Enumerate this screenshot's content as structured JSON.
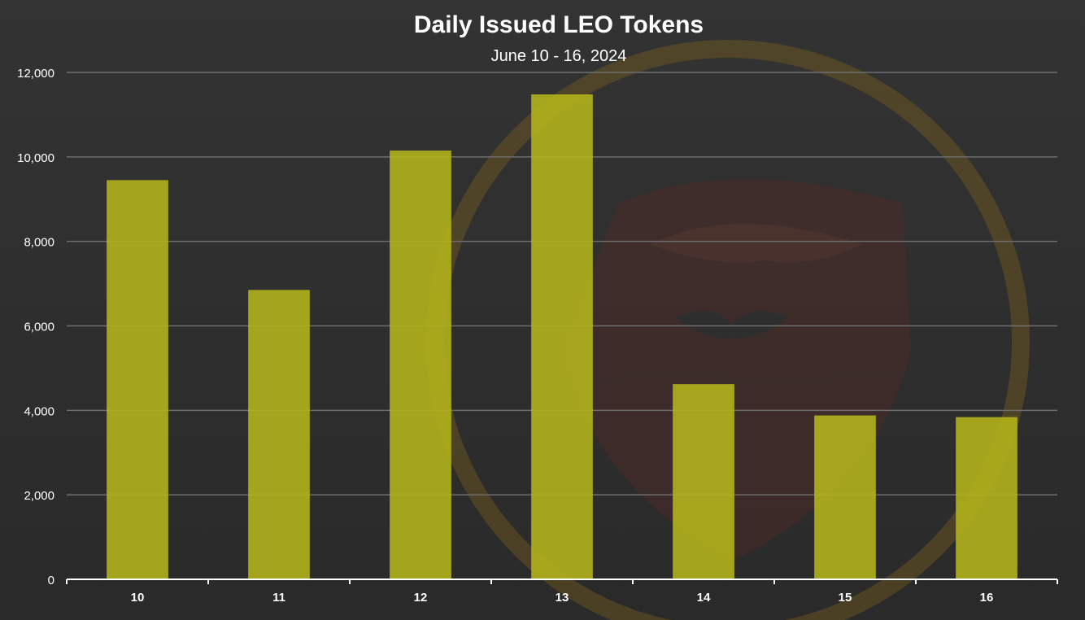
{
  "chart_data": {
    "type": "bar",
    "title": "Daily Issued LEO Tokens",
    "subtitle": "June 10 - 16, 2024",
    "xlabel": "",
    "ylabel": "",
    "categories": [
      "10",
      "11",
      "12",
      "13",
      "14",
      "15",
      "16"
    ],
    "values": [
      9450,
      6850,
      10150,
      11480,
      4620,
      3880,
      3840
    ],
    "ylim": [
      0,
      12000
    ],
    "yticks": [
      0,
      2000,
      4000,
      6000,
      8000,
      10000,
      12000
    ],
    "ytick_labels": [
      "0",
      "2,000",
      "4,000",
      "6,000",
      "8,000",
      "10,000",
      "12,000"
    ],
    "grid": true,
    "legend": "none",
    "colors": {
      "bar": "#b2b21c",
      "background": "#2f2f2f",
      "grid": "#6e6e6e",
      "axis": "#ffffff",
      "text": "#ffffff",
      "watermark": "#7a3a2a"
    }
  }
}
